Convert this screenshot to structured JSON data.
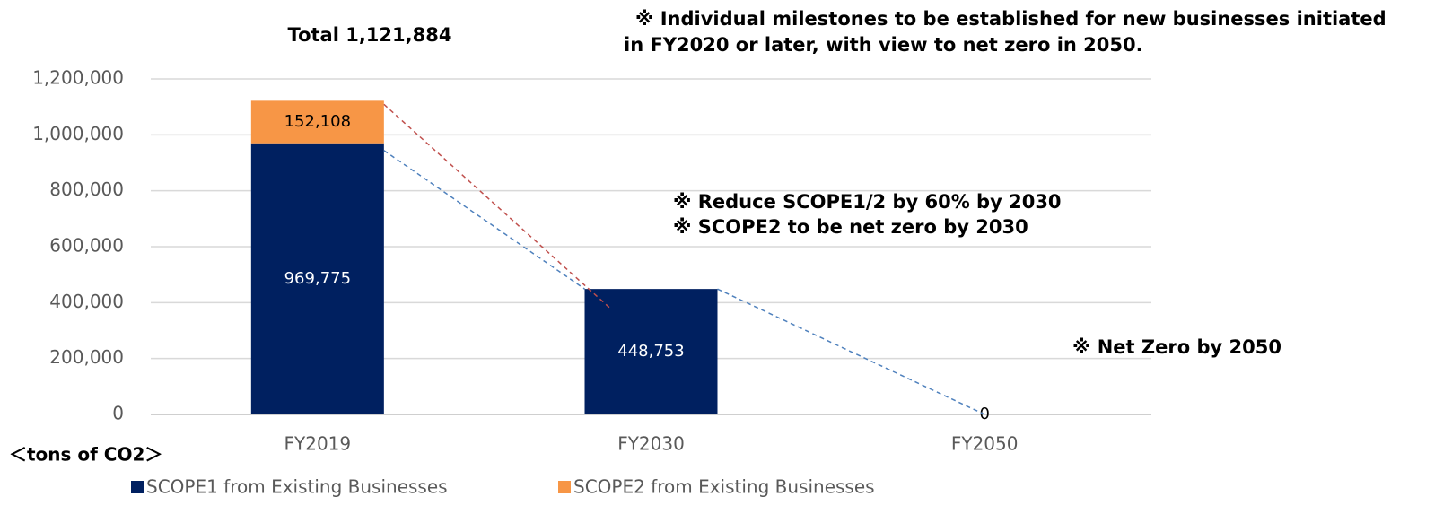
{
  "chart_data": {
    "type": "stacked_bar",
    "categories": [
      "FY2019",
      "FY2030",
      "FY2050"
    ],
    "series": [
      {
        "name": "SCOPE1 from Existing Businesses",
        "color": "#002060",
        "values": [
          969775,
          448753,
          0
        ],
        "value_labels": [
          "969,775",
          "448,753",
          "0"
        ]
      },
      {
        "name": "SCOPE2 from Existing Businesses",
        "color": "#f79646",
        "values": [
          152108,
          null,
          null
        ],
        "value_labels": [
          "152,108",
          null,
          null
        ]
      }
    ],
    "ylim": [
      0,
      1200000
    ],
    "yticks": [
      0,
      {
        "value": 200000,
        "label": "200,000"
      },
      {
        "value": 400000,
        "label": "400,000"
      },
      {
        "value": 600000,
        "label": "600,000"
      },
      {
        "value": 800000,
        "label": "800,000"
      },
      {
        "value": 1000000,
        "label": "1,000,000"
      },
      {
        "value": 1200000,
        "label": "1,200,000"
      }
    ],
    "grid": true,
    "y_label": "＜tons of CO2＞",
    "annotations": [
      "Total 1,121,884",
      "※ Individual milestones to be established for new businesses initiated",
      "in FY2020 or later, with view to net zero in 2050.",
      "※ Reduce SCOPE1/2 by 60% by 2030",
      "※ SCOPE2 to be net zero by 2030",
      "※ Net Zero by 2050"
    ]
  }
}
